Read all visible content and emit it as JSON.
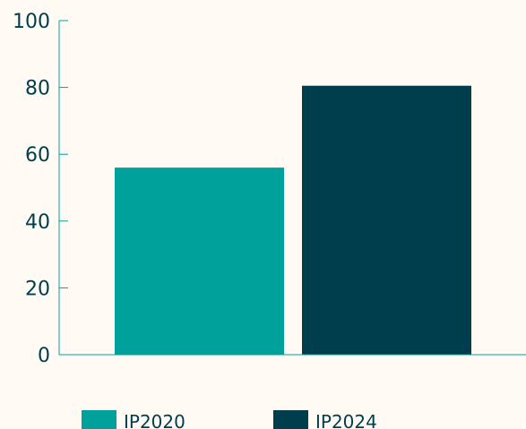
{
  "chart_data": {
    "type": "bar",
    "categories": [
      "IP2020",
      "IP2024"
    ],
    "values": [
      56,
      80.5
    ],
    "title": "",
    "xlabel": "",
    "ylabel": "",
    "ylim": [
      0,
      100
    ],
    "yticks": [
      0,
      20,
      40,
      60,
      80,
      100
    ],
    "grid": false,
    "legend_position": "bottom-left",
    "legend": [
      {
        "label": "IP2020",
        "color": "#00a19a"
      },
      {
        "label": "IP2024",
        "color": "#003e4d"
      }
    ],
    "colors": {
      "background": "#fffaf3",
      "axis": "#00a19a",
      "tick_text": "#003e4d",
      "series": [
        "#00a19a",
        "#003e4d"
      ]
    }
  }
}
